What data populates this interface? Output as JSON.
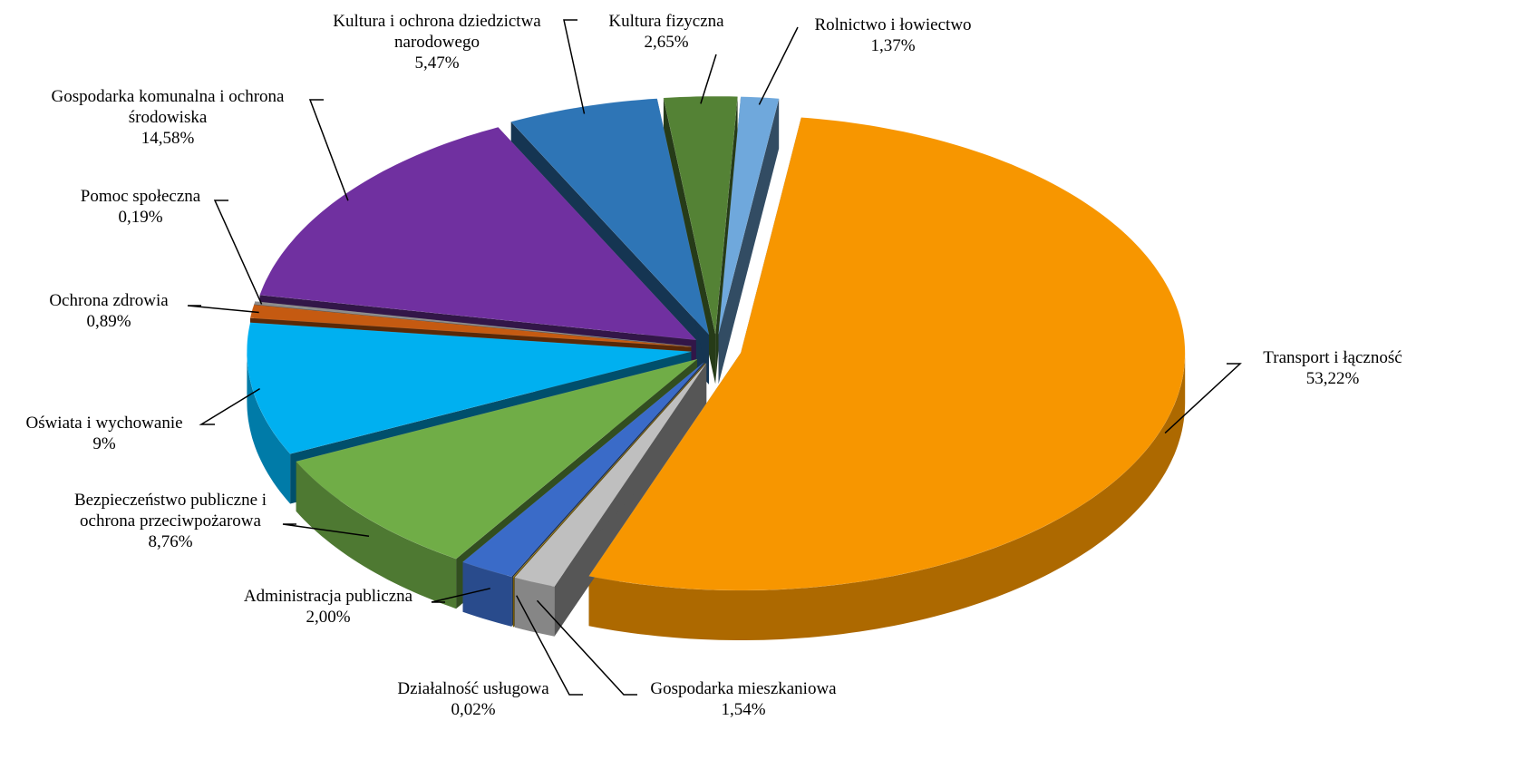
{
  "chart_data": {
    "type": "pie3d",
    "categories": [
      "Rolnictwo i łowiectwo",
      "Transport i łączność",
      "Gospodarka mieszkaniowa",
      "Działalność usługowa",
      "Administracja publiczna",
      "Bezpieczeństwo publiczne i ochrona przeciwpożarowa",
      "Oświata i wychowanie",
      "Ochrona zdrowia",
      "Pomoc społeczna",
      "Gospodarka komunalna i ochrona środowiska",
      "Kultura i ochrona dziedzictwa narodowego",
      "Kultura fizyczna"
    ],
    "values": [
      1.37,
      53.22,
      1.54,
      0.02,
      2.0,
      8.76,
      9,
      0.89,
      0.19,
      14.58,
      5.47,
      2.65
    ],
    "value_labels": [
      "1,37%",
      "53,22%",
      "1,54%",
      "0,02%",
      "2,00%",
      "8,76%",
      "9%",
      "0,89%",
      "0,19%",
      "14,58%",
      "5,47%",
      "2,65%"
    ],
    "colors": [
      "#6fa8dc",
      "#f79600",
      "#bfbfbf",
      "#c99a06",
      "#3a6bc8",
      "#70ad47",
      "#00b0f0",
      "#c55a11",
      "#8c8c8c",
      "#7030a0",
      "#2e75b6",
      "#548235"
    ]
  }
}
